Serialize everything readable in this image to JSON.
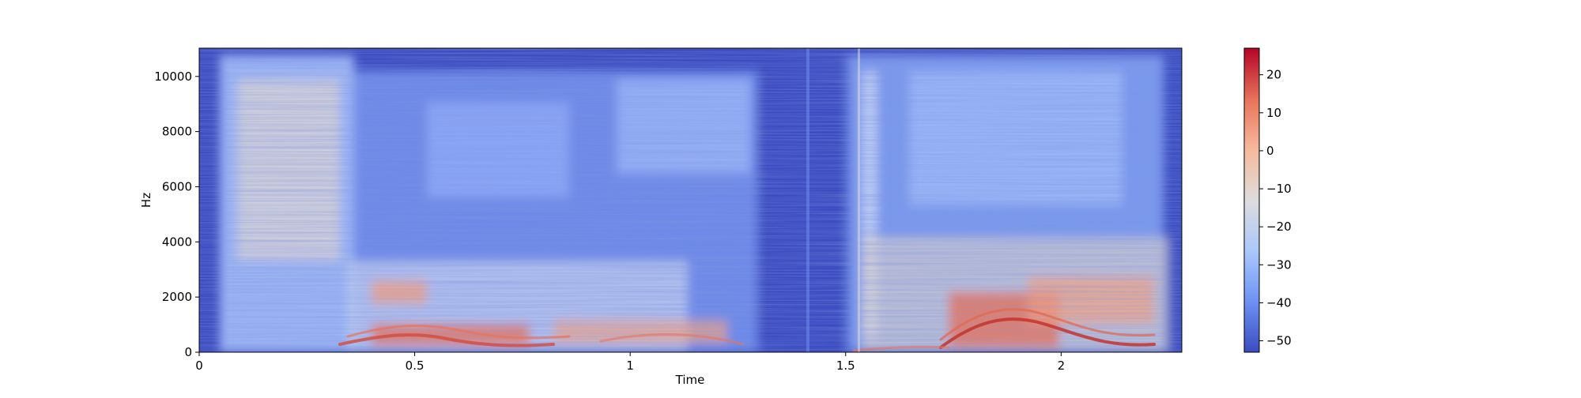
{
  "chart_data": {
    "type": "heatmap",
    "title": "",
    "xlabel": "Time",
    "ylabel": "Hz",
    "xlim": [
      0,
      2.28
    ],
    "ylim": [
      0,
      11025
    ],
    "x_ticks": [
      {
        "value": 0,
        "label": "0"
      },
      {
        "value": 0.5,
        "label": "0.5"
      },
      {
        "value": 1,
        "label": "1"
      },
      {
        "value": 1.5,
        "label": "1.5"
      },
      {
        "value": 2,
        "label": "2"
      }
    ],
    "y_ticks": [
      {
        "value": 0,
        "label": "0"
      },
      {
        "value": 2000,
        "label": "2000"
      },
      {
        "value": 4000,
        "label": "4000"
      },
      {
        "value": 6000,
        "label": "6000"
      },
      {
        "value": 8000,
        "label": "8000"
      },
      {
        "value": 10000,
        "label": "10000"
      }
    ],
    "colorbar": {
      "colormap": "coolwarm",
      "range": [
        -53,
        27
      ],
      "ticks": [
        {
          "value": 20,
          "label": "20"
        },
        {
          "value": 10,
          "label": "10"
        },
        {
          "value": 0,
          "label": "0"
        },
        {
          "value": -10,
          "label": "−10"
        },
        {
          "value": -20,
          "label": "−20"
        },
        {
          "value": -30,
          "label": "−30"
        },
        {
          "value": -40,
          "label": "−40"
        },
        {
          "value": -50,
          "label": "−50"
        }
      ],
      "colors": [
        "#3b4cc0",
        "#6f92f3",
        "#aac7fd",
        "#dddddd",
        "#f7b89c",
        "#e7745b",
        "#b40426"
      ]
    },
    "grid": false
  }
}
